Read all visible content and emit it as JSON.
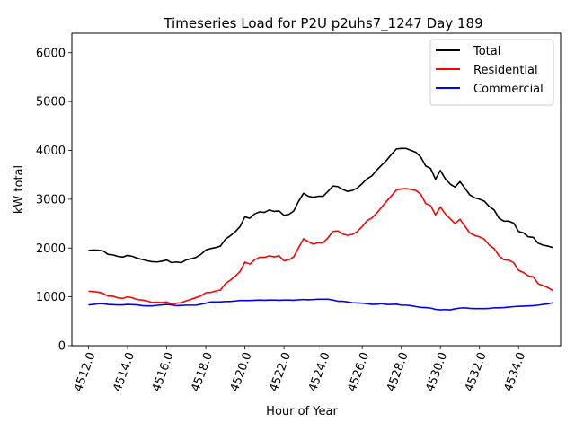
{
  "chart_data": {
    "type": "line",
    "title": "Timeseries Load for P2U p2uhs7_1247  Day 189",
    "xlabel": "Hour of Year",
    "ylabel": "kW total",
    "xlim": [
      4511.15,
      4536.15
    ],
    "ylim": [
      0,
      6400
    ],
    "x_ticks": [
      4512.0,
      4514.0,
      4516.0,
      4518.0,
      4520.0,
      4522.0,
      4524.0,
      4526.0,
      4528.0,
      4530.0,
      4532.0,
      4534.0
    ],
    "x_tick_labels": [
      "4512.0",
      "4514.0",
      "4516.0",
      "4518.0",
      "4520.0",
      "4522.0",
      "4524.0",
      "4526.0",
      "4528.0",
      "4530.0",
      "4532.0",
      "4534.0"
    ],
    "y_ticks": [
      0,
      1000,
      2000,
      3000,
      4000,
      5000,
      6000
    ],
    "y_tick_labels": [
      "0",
      "1000",
      "2000",
      "3000",
      "4000",
      "5000",
      "6000"
    ],
    "legend_position": "top-right",
    "x": {
      "start": 4512.0,
      "step": 0.25,
      "count": 96
    },
    "series": [
      {
        "name": "Total",
        "color": "#000000",
        "values": [
          1950,
          1960,
          1955,
          1940,
          1870,
          1860,
          1830,
          1815,
          1850,
          1830,
          1790,
          1765,
          1740,
          1720,
          1715,
          1730,
          1755,
          1700,
          1715,
          1700,
          1760,
          1780,
          1810,
          1870,
          1960,
          1990,
          2010,
          2040,
          2180,
          2250,
          2330,
          2440,
          2640,
          2610,
          2700,
          2740,
          2730,
          2780,
          2750,
          2760,
          2670,
          2690,
          2760,
          2960,
          3120,
          3060,
          3040,
          3060,
          3060,
          3160,
          3270,
          3260,
          3200,
          3160,
          3180,
          3230,
          3320,
          3420,
          3480,
          3600,
          3700,
          3800,
          3920,
          4030,
          4040,
          4040,
          4000,
          3960,
          3860,
          3680,
          3630,
          3410,
          3590,
          3420,
          3310,
          3250,
          3360,
          3230,
          3090,
          3030,
          3000,
          2960,
          2850,
          2780,
          2610,
          2550,
          2550,
          2510,
          2340,
          2310,
          2230,
          2220,
          2100,
          2060,
          2040,
          2010
        ]
      },
      {
        "name": "Residential",
        "color": "#ff0000",
        "values": [
          1115,
          1110,
          1095,
          1070,
          1015,
          1015,
          980,
          970,
          1000,
          980,
          945,
          935,
          915,
          885,
          890,
          885,
          895,
          850,
          870,
          880,
          920,
          950,
          985,
          1020,
          1085,
          1090,
          1120,
          1140,
          1270,
          1340,
          1420,
          1520,
          1710,
          1670,
          1760,
          1810,
          1810,
          1840,
          1820,
          1840,
          1740,
          1760,
          1820,
          2010,
          2190,
          2130,
          2080,
          2110,
          2110,
          2210,
          2340,
          2350,
          2290,
          2260,
          2280,
          2340,
          2440,
          2560,
          2620,
          2720,
          2840,
          2960,
          3070,
          3190,
          3210,
          3220,
          3200,
          3180,
          3100,
          2910,
          2870,
          2680,
          2840,
          2700,
          2600,
          2500,
          2590,
          2450,
          2310,
          2260,
          2230,
          2180,
          2060,
          1990,
          1840,
          1760,
          1750,
          1700,
          1540,
          1500,
          1430,
          1410,
          1270,
          1230,
          1190,
          1130
        ]
      },
      {
        "name": "Commercial",
        "color": "#0000ff",
        "values": [
          835,
          845,
          860,
          860,
          845,
          840,
          835,
          835,
          845,
          840,
          835,
          820,
          815,
          815,
          825,
          835,
          845,
          835,
          820,
          825,
          830,
          830,
          830,
          850,
          870,
          895,
          895,
          895,
          905,
          905,
          915,
          925,
          925,
          925,
          930,
          935,
          930,
          935,
          935,
          930,
          935,
          935,
          930,
          940,
          945,
          940,
          945,
          950,
          950,
          950,
          935,
          910,
          910,
          895,
          880,
          875,
          870,
          860,
          845,
          850,
          860,
          845,
          845,
          850,
          830,
          830,
          820,
          800,
          785,
          780,
          770,
          745,
          735,
          740,
          735,
          755,
          770,
          775,
          765,
          760,
          760,
          760,
          765,
          775,
          775,
          780,
          790,
          800,
          805,
          810,
          815,
          820,
          830,
          845,
          855,
          880
        ]
      }
    ]
  }
}
